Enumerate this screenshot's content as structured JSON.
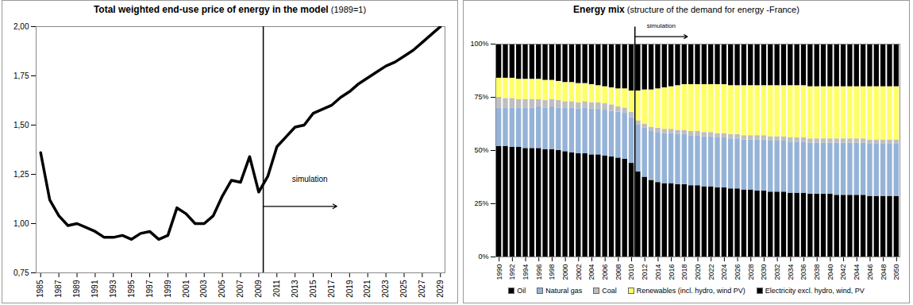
{
  "chart_data": [
    {
      "type": "line",
      "title": "Total weighted end-use price of energy in the model",
      "subtitle": "(1989=1)",
      "x": [
        1985,
        1986,
        1987,
        1988,
        1989,
        1990,
        1991,
        1992,
        1993,
        1994,
        1995,
        1996,
        1997,
        1998,
        1999,
        2000,
        2001,
        2002,
        2003,
        2004,
        2005,
        2006,
        2007,
        2008,
        2009,
        2010,
        2011,
        2012,
        2013,
        2014,
        2015,
        2016,
        2017,
        2018,
        2019,
        2020,
        2021,
        2022,
        2023,
        2024,
        2025,
        2026,
        2027,
        2028,
        2029
      ],
      "values": [
        1.36,
        1.12,
        1.04,
        0.99,
        1.0,
        0.98,
        0.96,
        0.93,
        0.93,
        0.94,
        0.92,
        0.95,
        0.96,
        0.92,
        0.94,
        1.08,
        1.05,
        1.0,
        1.0,
        1.04,
        1.14,
        1.22,
        1.21,
        1.34,
        1.16,
        1.24,
        1.39,
        1.44,
        1.49,
        1.5,
        1.56,
        1.58,
        1.6,
        1.64,
        1.67,
        1.71,
        1.74,
        1.77,
        1.8,
        1.82,
        1.85,
        1.88,
        1.92,
        1.96,
        2.0
      ],
      "color": "#000000",
      "xlim": [
        1984.5,
        2029.5
      ],
      "xticks": [
        1985,
        1987,
        1989,
        1991,
        1993,
        1995,
        1997,
        1999,
        2001,
        2003,
        2005,
        2007,
        2009,
        2011,
        2013,
        2015,
        2017,
        2019,
        2021,
        2023,
        2025,
        2027,
        2029
      ],
      "ylim": [
        0.75,
        2.0
      ],
      "yticks": [
        {
          "value": 0.75,
          "label": "0,75"
        },
        {
          "value": 1.0,
          "label": "1,00"
        },
        {
          "value": 1.25,
          "label": "1,25"
        },
        {
          "value": 1.5,
          "label": "1,50"
        },
        {
          "value": 1.75,
          "label": "1,75"
        },
        {
          "value": 2.0,
          "label": "2,00"
        }
      ],
      "annotations": [
        {
          "text": "simulation",
          "x": 2009.5
        }
      ]
    },
    {
      "type": "bar",
      "stacked": true,
      "title": "Energy mix",
      "subtitle": "(structure of the demand for energy -France)",
      "x": [
        1990,
        1991,
        1992,
        1993,
        1994,
        1995,
        1996,
        1997,
        1998,
        1999,
        2000,
        2001,
        2002,
        2003,
        2004,
        2005,
        2006,
        2007,
        2008,
        2009,
        2010,
        2011,
        2012,
        2013,
        2014,
        2015,
        2016,
        2017,
        2018,
        2019,
        2020,
        2021,
        2022,
        2023,
        2024,
        2025,
        2026,
        2027,
        2028,
        2029,
        2030,
        2031,
        2032,
        2033,
        2034,
        2035,
        2036,
        2037,
        2038,
        2039,
        2040,
        2041,
        2042,
        2043,
        2044,
        2045,
        2046,
        2047,
        2048,
        2049,
        2050
      ],
      "series": [
        {
          "name": "Oil",
          "color": "#000000",
          "values": [
            52,
            52,
            51.5,
            51.5,
            51,
            51,
            51,
            50.5,
            50.5,
            50,
            49.5,
            49,
            48.5,
            48.5,
            48,
            48,
            47.5,
            47,
            46.5,
            46,
            44,
            40,
            37.5,
            36,
            35,
            34.5,
            34.5,
            34,
            34,
            33.5,
            33.5,
            33,
            33,
            32.5,
            32.5,
            32,
            32,
            31.5,
            31.5,
            31,
            31,
            30.5,
            30.5,
            30.5,
            30,
            30,
            30,
            29.5,
            29.5,
            29.5,
            29.5,
            29,
            29,
            29,
            29,
            29,
            28.5,
            28.5,
            28.5,
            28.5,
            28.5
          ]
        },
        {
          "name": "Natural gas",
          "color": "#95b3d7",
          "values": [
            18,
            18,
            18.5,
            18.5,
            19,
            19,
            19.5,
            19.5,
            20,
            20,
            20.5,
            21,
            21,
            21.5,
            21.5,
            21.5,
            21.5,
            21.5,
            21.5,
            21.5,
            21.5,
            22,
            23,
            23,
            23.5,
            23.5,
            23.5,
            23.5,
            23.5,
            23.5,
            23.5,
            23.5,
            23.5,
            23.5,
            23.5,
            23.5,
            23.5,
            23.5,
            23.5,
            24,
            24,
            24,
            24,
            24,
            24,
            24,
            24,
            24,
            24,
            24,
            24,
            24.5,
            24.5,
            24.5,
            24.5,
            24.5,
            24.5,
            24.5,
            24.5,
            24.5,
            24.5
          ]
        },
        {
          "name": "Coal",
          "color": "#bfbfbf",
          "values": [
            5,
            4.5,
            4.5,
            4,
            4,
            4,
            3.5,
            3.5,
            3.5,
            3.5,
            3,
            3,
            3,
            3,
            3,
            3,
            3,
            3,
            2.5,
            2.5,
            2.5,
            2,
            2,
            2,
            2,
            2,
            2,
            2,
            2,
            2,
            2,
            2,
            2,
            2,
            2,
            2,
            2,
            2,
            2,
            2,
            2,
            2,
            2,
            2,
            2,
            2,
            2,
            2,
            2,
            2,
            2,
            2,
            2,
            2,
            2,
            2,
            2,
            2,
            2,
            2,
            2
          ]
        },
        {
          "name": "Renewables (incl. hydro, wind PV)",
          "color": "#ffff66",
          "values": [
            9,
            9.5,
            9.5,
            9.5,
            9.5,
            9.5,
            9.5,
            9.5,
            9,
            9,
            9,
            9,
            9,
            8.5,
            8.5,
            8,
            8,
            8,
            8.5,
            9,
            10,
            14,
            16,
            17.5,
            18.5,
            19.5,
            20,
            21,
            21.5,
            22,
            22,
            22.5,
            22.5,
            23,
            23,
            23,
            23,
            23.5,
            23.5,
            23.5,
            23.5,
            24,
            24,
            24,
            24.5,
            24.5,
            24.5,
            24.5,
            24.5,
            24.5,
            24.5,
            24.5,
            24.5,
            24.5,
            24.5,
            24.5,
            25,
            25,
            25,
            25,
            25
          ]
        },
        {
          "name": "Electricity excl. hydro, wind, PV",
          "color": "#000000",
          "values": [
            16,
            16,
            16,
            16.5,
            16.5,
            16.5,
            16.5,
            17,
            17,
            17.5,
            18,
            18,
            18.5,
            18.5,
            19,
            19.5,
            20,
            20.5,
            21,
            21,
            22,
            22,
            21.5,
            21.5,
            21,
            20.5,
            20,
            19.5,
            19,
            19,
            19,
            19,
            19,
            19,
            19,
            19.5,
            19.5,
            19.5,
            19.5,
            19.5,
            19.5,
            19.5,
            19.5,
            19.5,
            19.5,
            19.5,
            19.5,
            20,
            20,
            20,
            20,
            20,
            20,
            20,
            20,
            20,
            20,
            20,
            20,
            20,
            20
          ]
        }
      ],
      "xlim": [
        1989.5,
        2050.5
      ],
      "xticks": [
        1990,
        1992,
        1994,
        1996,
        1998,
        2000,
        2002,
        2004,
        2006,
        2008,
        2010,
        2012,
        2014,
        2016,
        2018,
        2020,
        2022,
        2024,
        2026,
        2028,
        2030,
        2032,
        2034,
        2036,
        2038,
        2040,
        2042,
        2044,
        2046,
        2048,
        2050
      ],
      "ylim": [
        0,
        100
      ],
      "yticks": [
        {
          "value": 0,
          "label": "0%"
        },
        {
          "value": 25,
          "label": "25%"
        },
        {
          "value": 50,
          "label": "50%"
        },
        {
          "value": 75,
          "label": "75%"
        },
        {
          "value": 100,
          "label": "100%"
        }
      ],
      "legend": "bottom",
      "annotations": [
        {
          "text": "simulation",
          "x": 2010.5
        }
      ]
    }
  ]
}
